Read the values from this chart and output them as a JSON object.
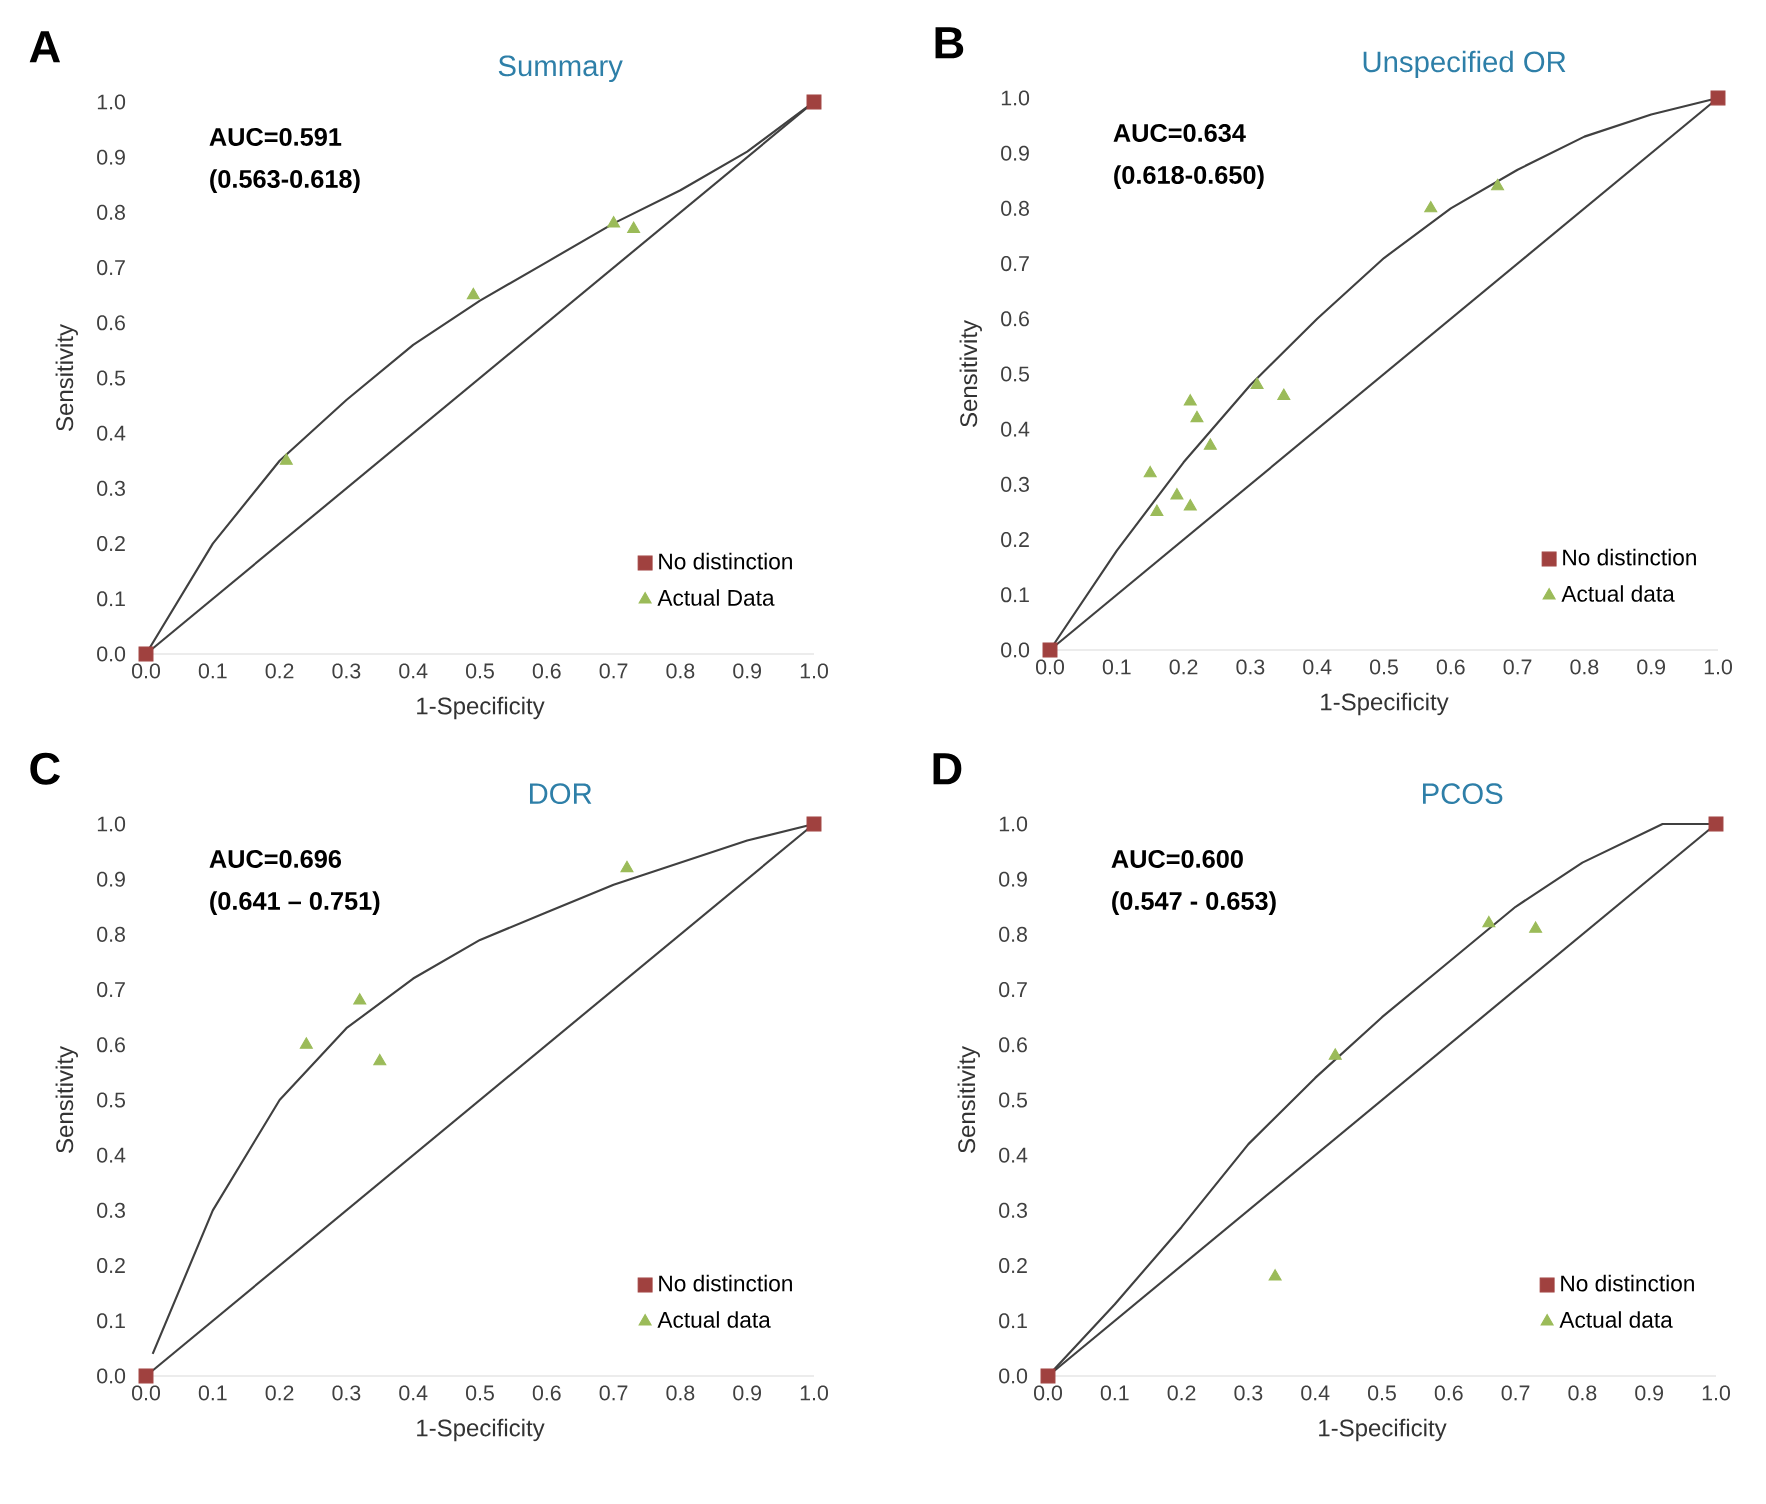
{
  "chart_data": [
    {
      "type": "scatter",
      "title": "Summary",
      "xlabel": "1-Specificity",
      "ylabel": "Sensitivity",
      "annotations": [
        "A",
        "AUC=0.591",
        "(0.563-0.618)"
      ],
      "xlim": [
        0,
        1
      ],
      "ylim": [
        0,
        1
      ],
      "xticks": [
        {
          "value": 0,
          "label": "0.0"
        },
        {
          "value": 0.1,
          "label": "0.1"
        },
        {
          "value": 0.2,
          "label": "0.2"
        },
        {
          "value": 0.3,
          "label": "0.3"
        },
        {
          "value": 0.4,
          "label": "0.4"
        },
        {
          "value": 0.5,
          "label": "0.5"
        },
        {
          "value": 0.6,
          "label": "0.6"
        },
        {
          "value": 0.7,
          "label": "0.7"
        },
        {
          "value": 0.8,
          "label": "0.8"
        },
        {
          "value": 0.9,
          "label": "0.9"
        },
        {
          "value": 1,
          "label": "1.0"
        }
      ],
      "yticks": [
        {
          "value": 0,
          "label": "0.0"
        },
        {
          "value": 0.1,
          "label": "0.1"
        },
        {
          "value": 0.2,
          "label": "0.2"
        },
        {
          "value": 0.3,
          "label": "0.3"
        },
        {
          "value": 0.4,
          "label": "0.4"
        },
        {
          "value": 0.5,
          "label": "0.5"
        },
        {
          "value": 0.6,
          "label": "0.6"
        },
        {
          "value": 0.7,
          "label": "0.7"
        },
        {
          "value": 0.8,
          "label": "0.8"
        },
        {
          "value": 0.9,
          "label": "0.9"
        },
        {
          "value": 1,
          "label": "1.0"
        }
      ],
      "legend": "bottom right",
      "series": [
        {
          "type": "line",
          "color": "#404040",
          "x": [
            0,
            1
          ],
          "values": [
            0,
            1
          ]
        },
        {
          "type": "line",
          "color": "#404040",
          "x": [
            0,
            0.1,
            0.2,
            0.3,
            0.4,
            0.5,
            0.6,
            0.7,
            0.8,
            0.9,
            1
          ],
          "values": [
            0,
            0.2,
            0.35,
            0.46,
            0.56,
            0.64,
            0.71,
            0.78,
            0.84,
            0.91,
            1
          ]
        },
        {
          "name": "No distinction",
          "marker": "square",
          "color": "#a0413f",
          "x": [
            0,
            1
          ],
          "values": [
            0,
            1
          ]
        },
        {
          "name": "Actual Data",
          "marker": "triangle",
          "color": "#9bbb59",
          "x": [
            0.21,
            0.49,
            0.7,
            0.73
          ],
          "values": [
            0.35,
            0.65,
            0.78,
            0.77
          ]
        }
      ]
    },
    {
      "type": "scatter",
      "title": "Unspecified OR",
      "xlabel": "1-Specificity",
      "ylabel": "Sensitivity",
      "annotations": [
        "B",
        "AUC=0.634",
        "(0.618-0.650)"
      ],
      "xlim": [
        0,
        1
      ],
      "ylim": [
        0,
        1
      ],
      "xticks": [
        {
          "value": 0,
          "label": "0.0"
        },
        {
          "value": 0.1,
          "label": "0.1"
        },
        {
          "value": 0.2,
          "label": "0.2"
        },
        {
          "value": 0.3,
          "label": "0.3"
        },
        {
          "value": 0.4,
          "label": "0.4"
        },
        {
          "value": 0.5,
          "label": "0.5"
        },
        {
          "value": 0.6,
          "label": "0.6"
        },
        {
          "value": 0.7,
          "label": "0.7"
        },
        {
          "value": 0.8,
          "label": "0.8"
        },
        {
          "value": 0.9,
          "label": "0.9"
        },
        {
          "value": 1,
          "label": "1.0"
        }
      ],
      "yticks": [
        {
          "value": 0,
          "label": "0.0"
        },
        {
          "value": 0.1,
          "label": "0.1"
        },
        {
          "value": 0.2,
          "label": "0.2"
        },
        {
          "value": 0.3,
          "label": "0.3"
        },
        {
          "value": 0.4,
          "label": "0.4"
        },
        {
          "value": 0.5,
          "label": "0.5"
        },
        {
          "value": 0.6,
          "label": "0.6"
        },
        {
          "value": 0.7,
          "label": "0.7"
        },
        {
          "value": 0.8,
          "label": "0.8"
        },
        {
          "value": 0.9,
          "label": "0.9"
        },
        {
          "value": 1,
          "label": "1.0"
        }
      ],
      "legend": "bottom right",
      "series": [
        {
          "type": "line",
          "color": "#404040",
          "x": [
            0,
            1
          ],
          "values": [
            0,
            1
          ]
        },
        {
          "type": "line",
          "color": "#404040",
          "x": [
            0,
            0.1,
            0.2,
            0.3,
            0.4,
            0.5,
            0.6,
            0.7,
            0.8,
            0.9,
            1
          ],
          "values": [
            0,
            0.18,
            0.34,
            0.48,
            0.6,
            0.71,
            0.8,
            0.87,
            0.93,
            0.97,
            1
          ]
        },
        {
          "name": "No distinction",
          "marker": "square",
          "color": "#a0413f",
          "x": [
            0,
            1
          ],
          "values": [
            0,
            1
          ]
        },
        {
          "name": "Actual data",
          "marker": "triangle",
          "color": "#9bbb59",
          "x": [
            0.15,
            0.16,
            0.19,
            0.21,
            0.22,
            0.21,
            0.24,
            0.31,
            0.35,
            0.57,
            0.67
          ],
          "values": [
            0.32,
            0.25,
            0.28,
            0.45,
            0.42,
            0.26,
            0.37,
            0.48,
            0.46,
            0.8,
            0.84
          ]
        }
      ]
    },
    {
      "type": "scatter",
      "title": "DOR",
      "xlabel": "1-Specificity",
      "ylabel": "Sensitivity",
      "annotations": [
        "C",
        "AUC=0.696",
        "(0.641 – 0.751)"
      ],
      "xlim": [
        0,
        1
      ],
      "ylim": [
        0,
        1
      ],
      "xticks": [
        {
          "value": 0,
          "label": "0.0"
        },
        {
          "value": 0.1,
          "label": "0.1"
        },
        {
          "value": 0.2,
          "label": "0.2"
        },
        {
          "value": 0.3,
          "label": "0.3"
        },
        {
          "value": 0.4,
          "label": "0.4"
        },
        {
          "value": 0.5,
          "label": "0.5"
        },
        {
          "value": 0.6,
          "label": "0.6"
        },
        {
          "value": 0.7,
          "label": "0.7"
        },
        {
          "value": 0.8,
          "label": "0.8"
        },
        {
          "value": 0.9,
          "label": "0.9"
        },
        {
          "value": 1,
          "label": "1.0"
        }
      ],
      "yticks": [
        {
          "value": 0,
          "label": "0.0"
        },
        {
          "value": 0.1,
          "label": "0.1"
        },
        {
          "value": 0.2,
          "label": "0.2"
        },
        {
          "value": 0.3,
          "label": "0.3"
        },
        {
          "value": 0.4,
          "label": "0.4"
        },
        {
          "value": 0.5,
          "label": "0.5"
        },
        {
          "value": 0.6,
          "label": "0.6"
        },
        {
          "value": 0.7,
          "label": "0.7"
        },
        {
          "value": 0.8,
          "label": "0.8"
        },
        {
          "value": 0.9,
          "label": "0.9"
        },
        {
          "value": 1,
          "label": "1.0"
        }
      ],
      "legend": "bottom right",
      "series": [
        {
          "type": "line",
          "color": "#404040",
          "x": [
            0,
            1
          ],
          "values": [
            0,
            1
          ]
        },
        {
          "type": "line",
          "color": "#404040",
          "x": [
            0.01,
            0.1,
            0.2,
            0.3,
            0.4,
            0.5,
            0.6,
            0.7,
            0.8,
            0.9,
            1
          ],
          "values": [
            0.04,
            0.3,
            0.5,
            0.63,
            0.72,
            0.79,
            0.84,
            0.89,
            0.93,
            0.97,
            1
          ]
        },
        {
          "name": "No distinction",
          "marker": "square",
          "color": "#a0413f",
          "x": [
            0,
            1
          ],
          "values": [
            0,
            1
          ]
        },
        {
          "name": "Actual data",
          "marker": "triangle",
          "color": "#9bbb59",
          "x": [
            0.24,
            0.32,
            0.35,
            0.72
          ],
          "values": [
            0.6,
            0.68,
            0.57,
            0.92
          ]
        }
      ]
    },
    {
      "type": "scatter",
      "title": "PCOS",
      "xlabel": "1-Specificity",
      "ylabel": "Sensitivity",
      "annotations": [
        "D",
        "AUC=0.600",
        "(0.547 - 0.653)"
      ],
      "xlim": [
        0,
        1
      ],
      "ylim": [
        0,
        1
      ],
      "xticks": [
        {
          "value": 0,
          "label": "0.0"
        },
        {
          "value": 0.1,
          "label": "0.1"
        },
        {
          "value": 0.2,
          "label": "0.2"
        },
        {
          "value": 0.3,
          "label": "0.3"
        },
        {
          "value": 0.4,
          "label": "0.4"
        },
        {
          "value": 0.5,
          "label": "0.5"
        },
        {
          "value": 0.6,
          "label": "0.6"
        },
        {
          "value": 0.7,
          "label": "0.7"
        },
        {
          "value": 0.8,
          "label": "0.8"
        },
        {
          "value": 0.9,
          "label": "0.9"
        },
        {
          "value": 1,
          "label": "1.0"
        }
      ],
      "yticks": [
        {
          "value": 0,
          "label": "0.0"
        },
        {
          "value": 0.1,
          "label": "0.1"
        },
        {
          "value": 0.2,
          "label": "0.2"
        },
        {
          "value": 0.3,
          "label": "0.3"
        },
        {
          "value": 0.4,
          "label": "0.4"
        },
        {
          "value": 0.5,
          "label": "0.5"
        },
        {
          "value": 0.6,
          "label": "0.6"
        },
        {
          "value": 0.7,
          "label": "0.7"
        },
        {
          "value": 0.8,
          "label": "0.8"
        },
        {
          "value": 0.9,
          "label": "0.9"
        },
        {
          "value": 1,
          "label": "1.0"
        }
      ],
      "legend": "bottom right",
      "series": [
        {
          "type": "line",
          "color": "#404040",
          "x": [
            0,
            1
          ],
          "values": [
            0,
            1
          ]
        },
        {
          "type": "line",
          "color": "#404040",
          "x": [
            0,
            0.1,
            0.2,
            0.3,
            0.4,
            0.5,
            0.6,
            0.7,
            0.8,
            0.92,
            1
          ],
          "values": [
            0,
            0.13,
            0.27,
            0.42,
            0.54,
            0.65,
            0.75,
            0.85,
            0.93,
            1,
            1
          ]
        },
        {
          "name": "No distinction",
          "marker": "square",
          "color": "#a0413f",
          "x": [
            0,
            1
          ],
          "values": [
            0,
            1
          ]
        },
        {
          "name": "Actual data",
          "marker": "triangle",
          "color": "#9bbb59",
          "x": [
            0.34,
            0.43,
            0.66,
            0.73
          ],
          "values": [
            0.18,
            0.58,
            0.82,
            0.81
          ]
        }
      ]
    }
  ]
}
